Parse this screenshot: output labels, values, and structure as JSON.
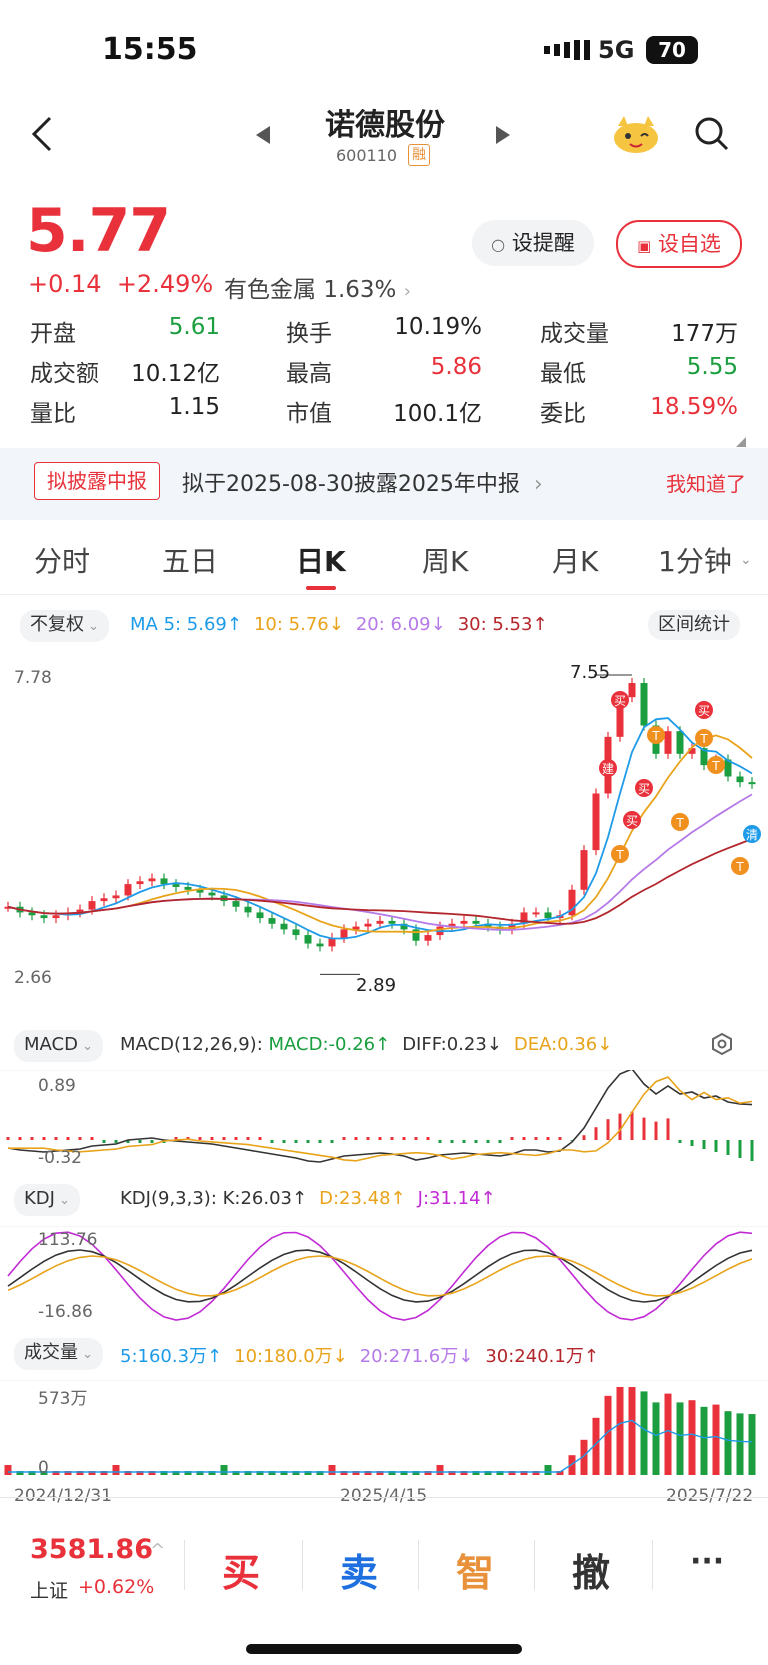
{
  "status_bar": {
    "time": "15:55",
    "network": "5G",
    "battery": "70"
  },
  "header": {
    "stock_name": "诺德股份",
    "stock_code": "600110",
    "margin_badge": "融"
  },
  "quote": {
    "price": "5.77",
    "change": "+0.14",
    "change_pct": "+2.49%",
    "sector": "有色金属",
    "sector_pct": "1.63%",
    "alert_label": "设提醒",
    "watch_label": "设自选",
    "stats": [
      {
        "label": "开盘",
        "value": "5.61",
        "color": "#1a9e3f"
      },
      {
        "label": "换手",
        "value": "10.19%",
        "color": "#222222"
      },
      {
        "label": "成交量",
        "value": "177万",
        "color": "#222222"
      },
      {
        "label": "成交额",
        "value": "10.12亿",
        "color": "#222222"
      },
      {
        "label": "最高",
        "value": "5.86",
        "color": "#e8313a"
      },
      {
        "label": "最低",
        "value": "5.55",
        "color": "#1a9e3f"
      },
      {
        "label": "量比",
        "value": "1.15",
        "color": "#222222"
      },
      {
        "label": "市值",
        "value": "100.1亿",
        "color": "#222222"
      },
      {
        "label": "委比",
        "value": "18.59%",
        "color": "#e8313a"
      }
    ]
  },
  "notice": {
    "tag": "拟披露中报",
    "text": "拟于2025-08-30披露2025年中报",
    "dismiss": "我知道了"
  },
  "tabs": [
    "分时",
    "五日",
    "日K",
    "周K",
    "月K",
    "1分钟"
  ],
  "active_tab": "日K",
  "kline": {
    "adjust_label": "不复权",
    "stats_button": "区间统计",
    "ma": [
      {
        "label": "MA 5: 5.69↑",
        "color": "#1e9be8"
      },
      {
        "label": "10: 5.76↓",
        "color": "#e8a31a"
      },
      {
        "label": "20: 6.09↓",
        "color": "#b57ae8"
      },
      {
        "label": "30: 5.53↑",
        "color": "#b3262c"
      }
    ],
    "y_max": "7.78",
    "y_min": "2.66",
    "high_label": "7.55",
    "low_label": "2.89",
    "signal_labels": {
      "buy": "买",
      "t": "T",
      "build": "建",
      "clear": "清"
    }
  },
  "macd": {
    "selector": "MACD",
    "params": "MACD(12,26,9):",
    "values": [
      {
        "label": "MACD:-0.26↑",
        "color": "#1a9e3f"
      },
      {
        "label": "DIFF:0.23↓",
        "color": "#333333"
      },
      {
        "label": "DEA:0.36↓",
        "color": "#e8a31a"
      }
    ],
    "y_max": "0.89",
    "y_min": "-0.32"
  },
  "kdj": {
    "selector": "KDJ",
    "params": "KDJ(9,3,3):",
    "values": [
      {
        "label": "K:26.03↑",
        "color": "#333333"
      },
      {
        "label": "D:23.48↑",
        "color": "#e8a31a"
      },
      {
        "label": "J:31.14↑",
        "color": "#c22ad6"
      }
    ],
    "y_max": "113.76",
    "y_min": "-16.86"
  },
  "volume": {
    "selector": "成交量",
    "values": [
      {
        "label": "5:160.3万↑",
        "color": "#1e9be8"
      },
      {
        "label": "10:180.0万↓",
        "color": "#e8a31a"
      },
      {
        "label": "20:271.6万↓",
        "color": "#b57ae8"
      },
      {
        "label": "30:240.1万↑",
        "color": "#b3262c"
      }
    ],
    "y_max": "573万",
    "y_min": "0"
  },
  "x_axis": [
    "2024/12/31",
    "2025/4/15",
    "2025/7/22"
  ],
  "bottom_bar": {
    "index_value": "3581.86",
    "index_name": "上证",
    "index_change": "+0.62%",
    "buy": "买",
    "sell": "卖",
    "smart": "智",
    "cancel": "撤",
    "more": "···"
  },
  "kline_series": [
    3.6,
    3.5,
    3.45,
    3.4,
    3.45,
    3.5,
    3.55,
    3.7,
    3.75,
    3.8,
    4.0,
    4.05,
    4.1,
    4.0,
    3.95,
    3.9,
    3.85,
    3.8,
    3.7,
    3.6,
    3.5,
    3.4,
    3.3,
    3.2,
    3.1,
    2.95,
    2.9,
    3.05,
    3.2,
    3.25,
    3.3,
    3.35,
    3.3,
    3.2,
    3.0,
    3.1,
    3.25,
    3.3,
    3.35,
    3.3,
    3.25,
    3.2,
    3.3,
    3.5,
    3.5,
    3.4,
    3.45,
    3.9,
    4.6,
    5.6,
    6.6,
    7.3,
    7.55,
    6.8,
    6.3,
    6.7,
    6.3,
    6.4,
    6.1,
    6.2,
    5.9,
    5.8,
    5.77
  ]
}
